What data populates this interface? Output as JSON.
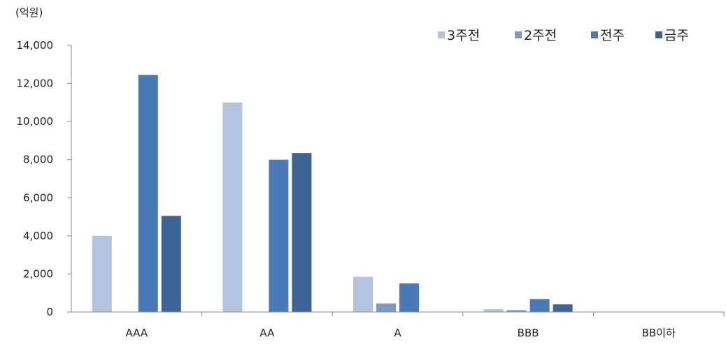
{
  "chart_data": {
    "type": "bar",
    "unit_label": "(억원)",
    "categories": [
      "AAA",
      "AA",
      "A",
      "BBB",
      "BB이하"
    ],
    "series": [
      {
        "name": "3주전",
        "color": "#b4c3e0",
        "values": [
          4000,
          11000,
          1850,
          150,
          0
        ]
      },
      {
        "name": "2주전",
        "color": "#7b9acb",
        "values": [
          0,
          0,
          450,
          100,
          0
        ]
      },
      {
        "name": "전주",
        "color": "#4a7ab5",
        "values": [
          12450,
          8000,
          1500,
          680,
          0
        ]
      },
      {
        "name": "금주",
        "color": "#3d6496",
        "values": [
          5050,
          8350,
          0,
          400,
          0
        ]
      }
    ],
    "y_ticks": [
      "14,000",
      "12,000",
      "10,000",
      "8,000",
      "6,000",
      "4,000",
      "2,000",
      "0"
    ],
    "ylim": [
      0,
      14000
    ],
    "grid": false,
    "legend_position": "top-right"
  }
}
